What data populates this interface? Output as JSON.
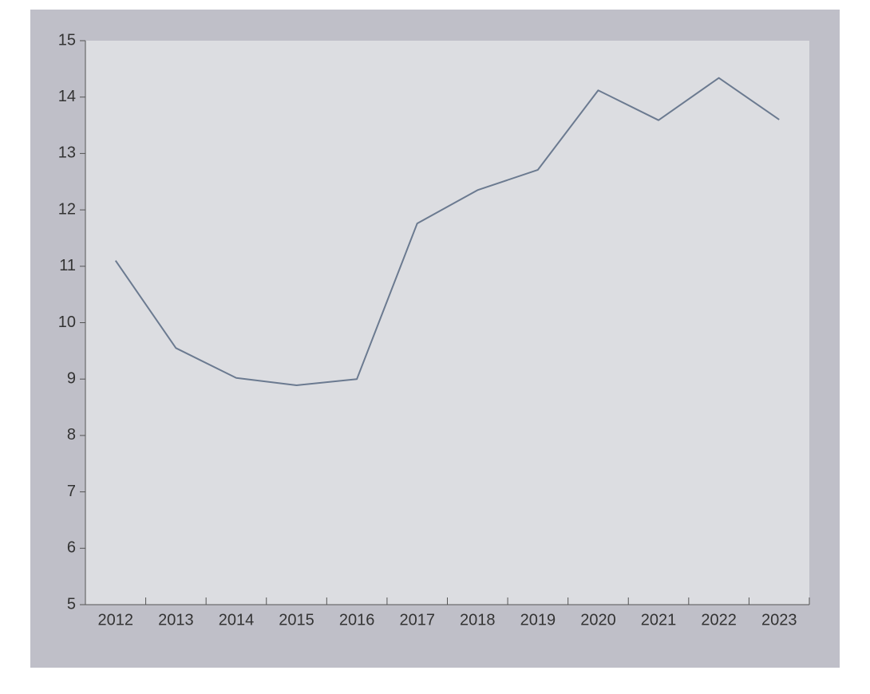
{
  "chart_data": {
    "type": "line",
    "categories": [
      "2012",
      "2013",
      "2014",
      "2015",
      "2016",
      "2017",
      "2018",
      "2019",
      "2020",
      "2021",
      "2022",
      "2023"
    ],
    "series": [
      {
        "color": "#6b7a90",
        "values": [
          11.1,
          9.55,
          9.02,
          8.89,
          9.0,
          11.76,
          12.35,
          12.71,
          14.12,
          13.59,
          14.34,
          13.6
        ]
      }
    ],
    "ylim": [
      5,
      15
    ],
    "yticks": [
      5,
      6,
      7,
      8,
      9,
      10,
      11,
      12,
      13,
      14,
      15
    ]
  }
}
